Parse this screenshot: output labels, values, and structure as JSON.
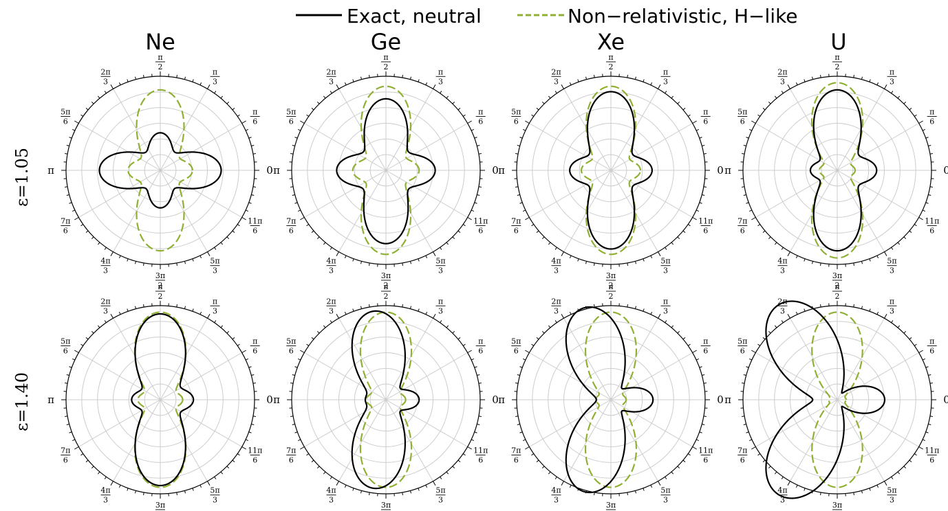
{
  "legend": {
    "items": [
      {
        "label": "Exact, neutral",
        "color": "#000000",
        "dash": "solid"
      },
      {
        "label": "Non−relativistic, H−like",
        "color": "#8fb032",
        "dash": "dashed"
      }
    ]
  },
  "columns": [
    "Ne",
    "Ge",
    "Xe",
    "U"
  ],
  "rows": [
    "ε=1.05",
    "ε=1.40"
  ],
  "angle_labels": [
    {
      "deg": 0,
      "text": "0"
    },
    {
      "deg": 30,
      "num": "π",
      "den": "6"
    },
    {
      "deg": 60,
      "num": "π",
      "den": "3"
    },
    {
      "deg": 90,
      "num": "π",
      "den": "2"
    },
    {
      "deg": 120,
      "num": "2π",
      "den": "3"
    },
    {
      "deg": 150,
      "num": "5π",
      "den": "6"
    },
    {
      "deg": 180,
      "text": "π"
    },
    {
      "deg": 210,
      "num": "7π",
      "den": "6"
    },
    {
      "deg": 240,
      "num": "4π",
      "den": "3"
    },
    {
      "deg": 270,
      "num": "3π",
      "den": "2"
    },
    {
      "deg": 300,
      "num": "5π",
      "den": "3"
    },
    {
      "deg": 330,
      "num": "11π",
      "den": "6"
    }
  ],
  "colors": {
    "exact": "#000000",
    "nonrel": "#8fb032",
    "grid": "#cccccc"
  },
  "chart_data": [
    {
      "type": "polar",
      "title": "Ne",
      "row_label": "ε=1.05",
      "rlim": [
        0,
        1
      ],
      "grid": true,
      "series": [
        {
          "name": "Exact, neutral",
          "lobes": {
            "right": 0.68,
            "up": 0.42,
            "left": 0.68,
            "down": 0.42,
            "tilt_deg": 0
          }
        },
        {
          "name": "Non−relativistic, H−like",
          "lobes": {
            "right": 0.36,
            "up": 0.9,
            "left": 0.36,
            "down": 0.9,
            "tilt_deg": 0
          }
        }
      ]
    },
    {
      "type": "polar",
      "title": "Ge",
      "row_label": "ε=1.05",
      "rlim": [
        0,
        1
      ],
      "grid": true,
      "series": [
        {
          "name": "Exact, neutral",
          "lobes": {
            "right": 0.55,
            "up": 0.8,
            "left": 0.55,
            "down": 0.82,
            "tilt_deg": 0
          }
        },
        {
          "name": "Non−relativistic, H−like",
          "lobes": {
            "right": 0.37,
            "up": 0.94,
            "left": 0.37,
            "down": 0.94,
            "tilt_deg": 0
          }
        }
      ]
    },
    {
      "type": "polar",
      "title": "Xe",
      "row_label": "ε=1.05",
      "rlim": [
        0,
        1
      ],
      "grid": true,
      "series": [
        {
          "name": "Exact, neutral",
          "lobes": {
            "right": 0.46,
            "up": 0.88,
            "left": 0.46,
            "down": 0.88,
            "tilt_deg": 0
          }
        },
        {
          "name": "Non−relativistic, H−like",
          "lobes": {
            "right": 0.33,
            "up": 0.94,
            "left": 0.33,
            "down": 0.94,
            "tilt_deg": 0
          }
        }
      ]
    },
    {
      "type": "polar",
      "title": "U",
      "row_label": "ε=1.05",
      "rlim": [
        0,
        1
      ],
      "grid": true,
      "series": [
        {
          "name": "Exact, neutral",
          "lobes": {
            "right": 0.44,
            "up": 0.9,
            "left": 0.3,
            "down": 0.9,
            "tilt_deg": 0
          }
        },
        {
          "name": "Non−relativistic, H−like",
          "lobes": {
            "right": 0.2,
            "up": 0.98,
            "left": 0.2,
            "down": 0.98,
            "tilt_deg": 0
          }
        }
      ]
    },
    {
      "type": "polar",
      "title": "Ne",
      "row_label": "ε=1.40",
      "rlim": [
        0,
        1
      ],
      "grid": true,
      "series": [
        {
          "name": "Exact, neutral",
          "lobes": {
            "right": 0.37,
            "up": 0.96,
            "left": 0.32,
            "down": 0.96,
            "tilt_deg": 0
          }
        },
        {
          "name": "Non−relativistic, H−like",
          "lobes": {
            "right": 0.25,
            "up": 0.98,
            "left": 0.25,
            "down": 0.98,
            "tilt_deg": 0
          }
        }
      ]
    },
    {
      "type": "polar",
      "title": "Ge",
      "row_label": "ε=1.40",
      "rlim": [
        0,
        1
      ],
      "grid": true,
      "series": [
        {
          "name": "Exact, neutral",
          "lobes": {
            "right": 0.37,
            "up": 1.0,
            "left": 0.23,
            "down": 1.0,
            "tilt_deg": 8
          }
        },
        {
          "name": "Non−relativistic, H−like",
          "lobes": {
            "right": 0.22,
            "up": 0.98,
            "left": 0.22,
            "down": 0.98,
            "tilt_deg": 0
          }
        }
      ]
    },
    {
      "type": "polar",
      "title": "Xe",
      "row_label": "ε=1.40",
      "rlim": [
        0,
        1
      ],
      "grid": true,
      "series": [
        {
          "name": "Exact, neutral",
          "lobes": {
            "right": 0.47,
            "up": 1.07,
            "left": 0.15,
            "down": 1.07,
            "tilt_deg": 16
          }
        },
        {
          "name": "Non−relativistic, H−like",
          "lobes": {
            "right": 0.17,
            "up": 0.98,
            "left": 0.17,
            "down": 0.98,
            "tilt_deg": 0
          }
        }
      ]
    },
    {
      "type": "polar",
      "title": "U",
      "row_label": "ε=1.40",
      "rlim": [
        0,
        1
      ],
      "grid": true,
      "series": [
        {
          "name": "Exact, neutral",
          "lobes": {
            "right": 0.53,
            "up": 1.24,
            "left": 0.1,
            "down": 1.24,
            "tilt_deg": 31
          }
        },
        {
          "name": "Non−relativistic, H−like",
          "lobes": {
            "right": 0.1,
            "up": 0.98,
            "left": 0.1,
            "down": 0.98,
            "tilt_deg": 0
          }
        }
      ]
    }
  ]
}
